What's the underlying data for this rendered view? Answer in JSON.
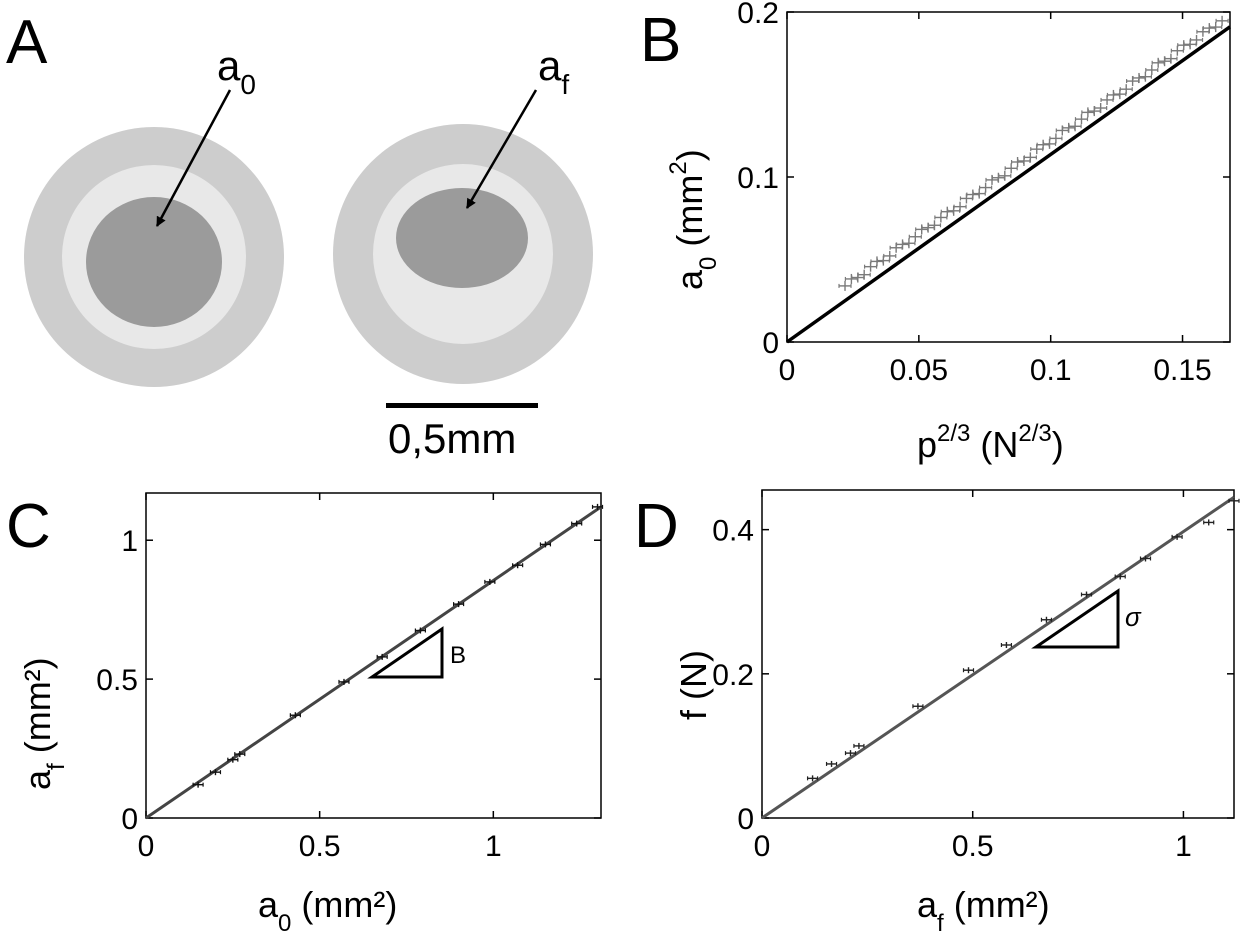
{
  "figure": {
    "panels": {
      "A": {
        "letter": "A",
        "label_left": {
          "base": "a",
          "sub": "0"
        },
        "label_right": {
          "base": "a",
          "sub": "f"
        },
        "scalebar_label": "0,5mm",
        "colors": {
          "outer": "#c8c8c8",
          "ring": "#e6e6e6",
          "inner": "#9a9a9a"
        }
      },
      "B": {
        "letter": "B"
      },
      "C": {
        "letter": "C",
        "triangle_label": "B"
      },
      "D": {
        "letter": "D",
        "triangle_label": "σ"
      }
    }
  },
  "chart_data": [
    {
      "id": "B",
      "type": "scatter",
      "x_label": {
        "base": "p",
        "sup": "2/3",
        "unit_base": "N",
        "unit_sup": "2/3"
      },
      "y_label": {
        "base": "a",
        "sub": "0",
        "unit_base": "mm",
        "unit_sup": "2"
      },
      "xlim": [
        0,
        0.168
      ],
      "ylim": [
        0,
        0.2
      ],
      "x_ticks": [
        0,
        0.05,
        0.1,
        0.15
      ],
      "x_tick_labels": [
        "0",
        "0.05",
        "0.1",
        "0.15"
      ],
      "y_ticks": [
        0,
        0.1,
        0.2
      ],
      "y_tick_labels": [
        "0",
        "0.1",
        "0.2"
      ],
      "fit_line": {
        "x": [
          0,
          0.168
        ],
        "y": [
          0,
          0.191
        ]
      },
      "points": {
        "x_start": 0.022,
        "x_end": 0.165,
        "count": 60,
        "y_at_start": 0.034,
        "y_at_end": 0.195
      },
      "colors": {
        "points": "#7a7a7a",
        "line": "#000000"
      }
    },
    {
      "id": "C",
      "type": "scatter",
      "x_label": {
        "base": "a",
        "sub": "0",
        "unit": "(mm²)"
      },
      "y_label": {
        "base": "a",
        "sub": "f",
        "unit": "(mm²)"
      },
      "xlim": [
        0,
        1.31
      ],
      "ylim": [
        0,
        1.17
      ],
      "x_ticks": [
        0,
        0.5,
        1
      ],
      "x_tick_labels": [
        "0",
        "0.5",
        "1"
      ],
      "y_ticks": [
        0,
        0.5,
        1
      ],
      "y_tick_labels": [
        "0",
        "0.5",
        "1"
      ],
      "fit_line": {
        "x": [
          0,
          1.31
        ],
        "y": [
          0,
          1.12
        ]
      },
      "x": [
        0.15,
        0.2,
        0.25,
        0.27,
        0.43,
        0.57,
        0.68,
        0.79,
        0.9,
        0.99,
        1.07,
        1.15,
        1.24,
        1.3
      ],
      "y": [
        0.12,
        0.165,
        0.21,
        0.23,
        0.37,
        0.49,
        0.58,
        0.675,
        0.77,
        0.85,
        0.91,
        0.985,
        1.06,
        1.12
      ],
      "colors": {
        "points": "#111111",
        "line": "#444444"
      }
    },
    {
      "id": "D",
      "type": "scatter",
      "x_label": {
        "base": "a",
        "sub": "f",
        "unit": "(mm²)"
      },
      "y_label": {
        "text": "f (N)"
      },
      "xlim": [
        0,
        1.12
      ],
      "ylim": [
        0,
        0.455
      ],
      "x_ticks": [
        0,
        0.5,
        1
      ],
      "x_tick_labels": [
        "0",
        "0.5",
        "1"
      ],
      "y_ticks": [
        0,
        0.2,
        0.4
      ],
      "y_tick_labels": [
        "0",
        "0.2",
        "0.4"
      ],
      "fit_line": {
        "x": [
          0,
          1.12
        ],
        "y": [
          0,
          0.445
        ]
      },
      "x": [
        0.12,
        0.165,
        0.21,
        0.23,
        0.37,
        0.49,
        0.58,
        0.675,
        0.77,
        0.85,
        0.91,
        0.985,
        1.06,
        1.12
      ],
      "y": [
        0.055,
        0.075,
        0.09,
        0.1,
        0.155,
        0.205,
        0.24,
        0.275,
        0.31,
        0.335,
        0.36,
        0.39,
        0.41,
        0.44
      ],
      "colors": {
        "points": "#222222",
        "line": "#555555"
      }
    }
  ]
}
